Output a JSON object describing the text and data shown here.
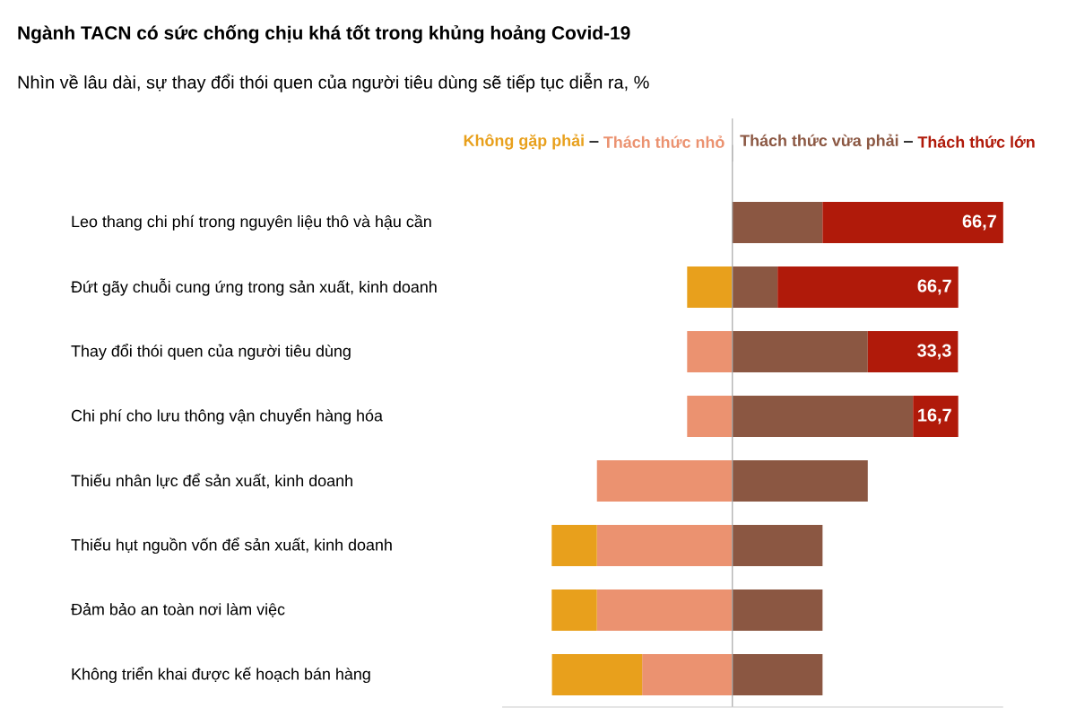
{
  "chart_data": {
    "type": "bar",
    "orientation": "horizontal",
    "stacked": true,
    "title": "Ngành TACN có sức chống chịu khá tốt trong khủng hoảng Covid-19",
    "subtitle": "Nhìn về lâu dài, sự thay đổi thói quen của người tiêu dùng sẽ tiếp tục diễn ra,  %",
    "categories": [
      "Leo thang chi phí trong nguyên liệu thô và hậu cần",
      "Đứt gãy chuỗi cung ứng trong sản xuất, kinh doanh",
      "Thay đổi thói quen của người tiêu dùng",
      "Chi phí cho lưu thông vận chuyển hàng hóa",
      "Thiếu nhân lực để sản xuất, kinh doanh",
      "Thiếu hụt nguồn vốn để sản xuất, kinh doanh",
      "Đảm bảo an toàn nơi làm việc",
      "Không triển khai được kế hoạch bán hàng"
    ],
    "series": [
      {
        "name": "Thách thức nhỏ",
        "color": "#eb9270",
        "values": [
          0,
          0,
          -16.7,
          -16.7,
          -50,
          -50,
          -50,
          -33.3
        ]
      },
      {
        "name": "Không gặp phải",
        "color": "#e8a01c",
        "values": [
          0,
          -16.7,
          0,
          0,
          0,
          -16.7,
          -16.7,
          -33.3
        ]
      },
      {
        "name": "Thách thức vừa phải",
        "color": "#8b5742",
        "values": [
          33.3,
          16.7,
          50,
          66.7,
          50,
          33.3,
          33.3,
          33.3
        ]
      },
      {
        "name": "Thách thức lớn",
        "color": "#b01a0a",
        "values": [
          66.7,
          66.7,
          33.3,
          16.7,
          0,
          0,
          0,
          0
        ],
        "value_labels": [
          "66,7",
          "66,7",
          "33,3",
          "16,7",
          null,
          null,
          null,
          null
        ]
      }
    ],
    "xlim": [
      -85,
      100
    ],
    "tick_labels": "y",
    "legend": "top"
  }
}
